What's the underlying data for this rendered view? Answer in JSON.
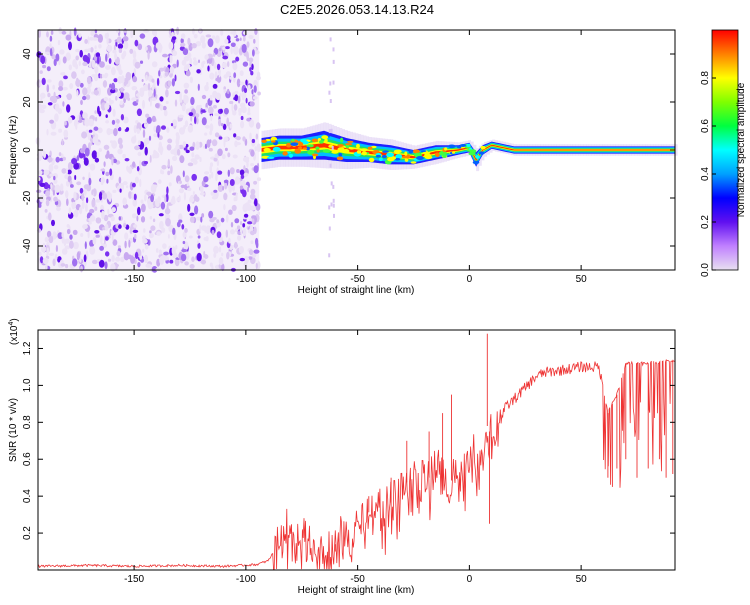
{
  "chart_data": [
    {
      "type": "heatmap",
      "title": "C2E5.2026.053.14.13.R24",
      "xlabel": "Height of straight line (km)",
      "ylabel": "Frequency (Hz)",
      "xlim": [
        -193,
        92
      ],
      "ylim": [
        -50,
        50
      ],
      "xticks": [
        -150,
        -100,
        -50,
        0,
        50
      ],
      "yticks": [
        -40,
        -20,
        0,
        20,
        40
      ],
      "colorbar": {
        "label": "Normalized spectral amplitude",
        "range": [
          0,
          1
        ],
        "ticks": [
          0.0,
          0.2,
          0.4,
          0.6,
          0.8
        ],
        "tick_labels": [
          "0.0",
          "0.2",
          "0.4",
          "0.6",
          "0.8"
        ],
        "colors": [
          "#e8e0f0",
          "#c080ff",
          "#6010f0",
          "#0000ff",
          "#00a0ff",
          "#00ffff",
          "#00ff40",
          "#80ff00",
          "#ffff00",
          "#ff8000",
          "#ff0000"
        ]
      },
      "noise_region": {
        "x_range": [
          -193,
          -94
        ],
        "y_range": [
          -50,
          50
        ]
      },
      "ridge": {
        "x": [
          -93,
          -85,
          -75,
          -65,
          -55,
          -45,
          -35,
          -25,
          -15,
          -5,
          0,
          3,
          6,
          10,
          20,
          40,
          60,
          80,
          92
        ],
        "y": [
          0,
          1,
          1,
          2,
          0,
          -1,
          -2,
          -3,
          -1,
          0,
          1,
          -4,
          0,
          2,
          0,
          0,
          0,
          0,
          0
        ],
        "width_hz": [
          5,
          5,
          5,
          6,
          5,
          4,
          4,
          3,
          3,
          2,
          2,
          3,
          2,
          1.5,
          1.5,
          1.5,
          1.5,
          1.5,
          1.5
        ]
      },
      "grid": false
    },
    {
      "type": "line",
      "xlabel": "Height of straight line (km)",
      "ylabel": "SNR (10 * v/v)",
      "y_scale_label": "(x10",
      "y_scale_exp": "4",
      "y_scale_close": ")",
      "xlim": [
        -193,
        92
      ],
      "ylim": [
        0,
        1.3
      ],
      "xticks": [
        -150,
        -100,
        -50,
        0,
        50
      ],
      "yticks": [
        0.2,
        0.4,
        0.6,
        0.8,
        1.0,
        1.2
      ],
      "color": "#ee3333",
      "series": [
        {
          "x": [
            -193,
            -170,
            -150,
            -130,
            -110,
            -95,
            -90,
            -85,
            -82,
            -78,
            -74,
            -70,
            -66,
            -62,
            -58,
            -54,
            -50,
            -46,
            -42,
            -38,
            -34,
            -30,
            -26,
            -22,
            -18,
            -14,
            -10,
            -6,
            -2,
            2,
            6,
            8,
            10,
            14,
            18,
            22,
            26,
            30,
            34,
            40,
            50,
            58,
            62,
            66,
            70,
            80,
            92
          ],
          "y": [
            0.02,
            0.025,
            0.02,
            0.025,
            0.02,
            0.03,
            0.05,
            0.15,
            0.22,
            0.12,
            0.18,
            0.14,
            0.1,
            0.08,
            0.2,
            0.12,
            0.25,
            0.3,
            0.35,
            0.32,
            0.38,
            0.45,
            0.5,
            0.48,
            0.5,
            0.55,
            0.45,
            0.52,
            0.55,
            0.6,
            0.68,
            0.78,
            0.72,
            0.85,
            0.9,
            0.95,
            1.0,
            1.05,
            1.07,
            1.08,
            1.1,
            1.1,
            0.85,
            0.95,
            1.12,
            1.12,
            1.14
          ],
          "spikes": {
            "x": [
              -60,
              -45,
              -35,
              -28,
              -18,
              -12,
              -8,
              8,
              9,
              10,
              62,
              64,
              66,
              70,
              75,
              80,
              85,
              88,
              91
            ],
            "y": [
              0.1,
              0.4,
              0.5,
              0.7,
              0.75,
              0.85,
              0.95,
              1.28,
              0.25,
              0.6,
              0.5,
              0.45,
              0.55,
              0.6,
              0.5,
              0.55,
              0.6,
              0.5,
              0.52
            ]
          }
        }
      ],
      "grid": false
    }
  ]
}
